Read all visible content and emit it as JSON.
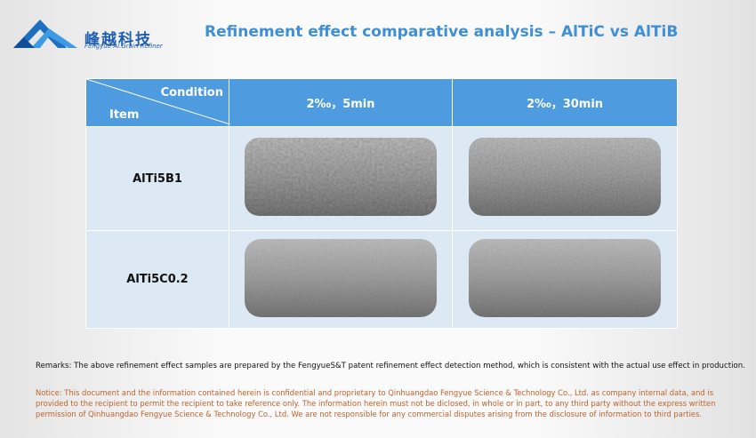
{
  "header": {
    "logo_text": "峰越科技",
    "logo_subtext": "Fengyue Al.Grain Refiner",
    "title": "Refinement effect comparative analysis – AlTiC vs AlTiB"
  },
  "table": {
    "corner": {
      "top": "Condition",
      "bottom": "Item"
    },
    "columns": [
      "2‰，5min",
      "2‰，30min"
    ],
    "rows": [
      "AlTi5B1",
      "AlTi5C0.2"
    ]
  },
  "remarks": "Remarks: The above refinement effect samples are prepared by the FengyueS&T patent refinement effect detection method, which is consistent with the actual use effect in production.",
  "notice": "Notice: This document and the information contained herein is confidential and proprietary to Qinhuangdao Fengyue Science & Technology Co., Ltd. as company internal data, and is provided to the recipient to permit the recipient to take reference only. The information herein must not be diclosed, in whole or in part, to any third party without the express written permission of Qinhuangdao Fengyue Science & Technology Co., Ltd. We are not responsible for any commercial disputes arising from the disclosure of information to third parties."
}
